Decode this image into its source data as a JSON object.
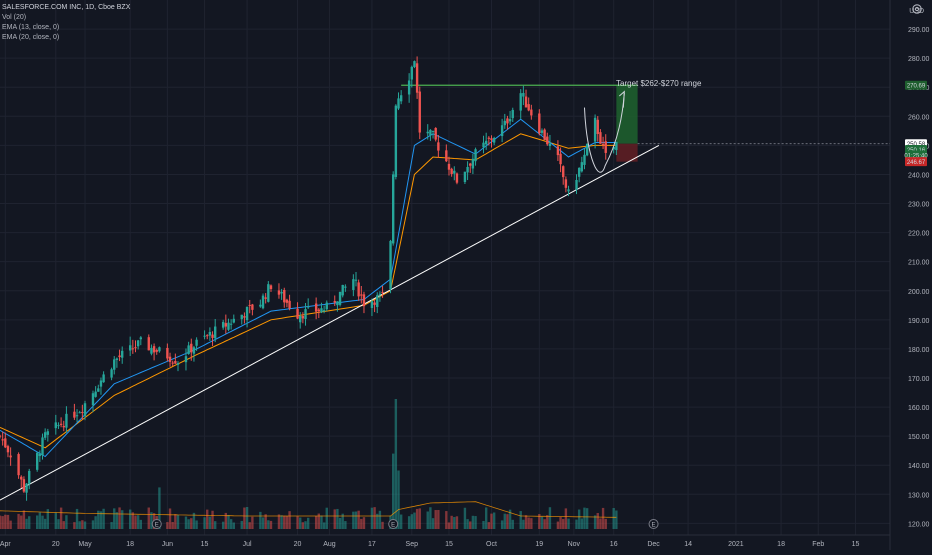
{
  "header": {
    "symbol_line": "SALESFORCE.COM INC, 1D, Cboe BZX",
    "indicators": [
      "Vol (20)",
      "EMA (13, close, 0)",
      "EMA (20, close, 0)"
    ]
  },
  "currency_label": "USD",
  "annotation_text": "Target $262-$270 range",
  "price_tags": [
    {
      "label": "270.69",
      "value": 270.69,
      "bg": "#1e5e2e",
      "fg": "#d1d4dc"
    },
    {
      "label": "250.58",
      "value": 250.58,
      "bg": "#ffffff",
      "fg": "#131722"
    },
    {
      "label": "250.16",
      "value": 248.6,
      "bg": "#1e6e3a",
      "fg": "#d1d4dc"
    },
    {
      "label": "01:25:40",
      "value": 246.7,
      "bg": "#1e6e3a",
      "fg": "#d1d4dc"
    },
    {
      "label": "246.67",
      "value": 244.4,
      "bg": "#c62828",
      "fg": "#d1d4dc"
    }
  ],
  "colors": {
    "background": "#131722",
    "grid": "#1f2330",
    "up": "#26a69a",
    "down": "#ef5350",
    "ema13": "#2196f3",
    "ema20": "#ff9800",
    "trendline": "#ffffff",
    "resistance": "#4caf50",
    "target_zone": "#1e5e2e",
    "stop_zone": "#5e1e24"
  },
  "chart_data": {
    "type": "candlestick",
    "title": "SALESFORCE.COM INC, 1D, Cboe BZX",
    "y_axis": {
      "ticks": [
        120,
        130,
        140,
        150,
        160,
        170,
        180,
        190,
        200,
        210,
        220,
        230,
        240,
        250,
        260,
        270,
        280,
        290
      ],
      "ylim": [
        116,
        300
      ],
      "scale": "linear",
      "position": "right",
      "unit": "USD"
    },
    "x_axis": {
      "ticks": [
        {
          "label": "Apr",
          "date": "2020-04-01"
        },
        {
          "label": "20",
          "date": "2020-04-20"
        },
        {
          "label": "May",
          "date": "2020-05-01"
        },
        {
          "label": "18",
          "date": "2020-05-18"
        },
        {
          "label": "Jun",
          "date": "2020-06-01"
        },
        {
          "label": "15",
          "date": "2020-06-15"
        },
        {
          "label": "Jul",
          "date": "2020-07-01"
        },
        {
          "label": "20",
          "date": "2020-07-20"
        },
        {
          "label": "Aug",
          "date": "2020-08-01"
        },
        {
          "label": "17",
          "date": "2020-08-17"
        },
        {
          "label": "Sep",
          "date": "2020-09-01"
        },
        {
          "label": "15",
          "date": "2020-09-15"
        },
        {
          "label": "Oct",
          "date": "2020-10-01"
        },
        {
          "label": "19",
          "date": "2020-10-19"
        },
        {
          "label": "Nov",
          "date": "2020-11-01"
        },
        {
          "label": "16",
          "date": "2020-11-16"
        },
        {
          "label": "Dec",
          "date": "2020-12-01"
        },
        {
          "label": "14",
          "date": "2020-12-14"
        },
        {
          "label": "2021",
          "date": "2021-01-01"
        },
        {
          "label": "18",
          "date": "2021-01-18"
        },
        {
          "label": "Feb",
          "date": "2021-02-01"
        },
        {
          "label": "15",
          "date": "2021-02-15"
        }
      ],
      "xlim": [
        "2020-03-30",
        "2021-02-28"
      ]
    },
    "grid": true,
    "legend": "top-left",
    "price_keyframes": [
      {
        "date": "2020-03-30",
        "close": 150
      },
      {
        "date": "2020-04-03",
        "close": 144
      },
      {
        "date": "2020-04-08",
        "close": 132
      },
      {
        "date": "2020-04-16",
        "close": 150
      },
      {
        "date": "2020-04-30",
        "close": 160
      },
      {
        "date": "2020-05-12",
        "close": 176
      },
      {
        "date": "2020-05-22",
        "close": 182
      },
      {
        "date": "2020-06-05",
        "close": 176
      },
      {
        "date": "2020-06-12",
        "close": 182
      },
      {
        "date": "2020-06-26",
        "close": 190
      },
      {
        "date": "2020-07-06",
        "close": 196
      },
      {
        "date": "2020-07-10",
        "close": 202
      },
      {
        "date": "2020-07-20",
        "close": 192
      },
      {
        "date": "2020-07-31",
        "close": 194
      },
      {
        "date": "2020-08-10",
        "close": 204
      },
      {
        "date": "2020-08-14",
        "close": 196
      },
      {
        "date": "2020-08-21",
        "close": 198
      },
      {
        "date": "2020-08-24",
        "close": 216
      },
      {
        "date": "2020-08-26",
        "close": 265
      },
      {
        "date": "2020-08-31",
        "close": 274
      },
      {
        "date": "2020-09-02",
        "close": 280
      },
      {
        "date": "2020-09-04",
        "close": 255
      },
      {
        "date": "2020-09-09",
        "close": 253
      },
      {
        "date": "2020-09-18",
        "close": 238
      },
      {
        "date": "2020-09-25",
        "close": 247
      },
      {
        "date": "2020-10-06",
        "close": 257
      },
      {
        "date": "2020-10-12",
        "close": 268
      },
      {
        "date": "2020-10-19",
        "close": 256
      },
      {
        "date": "2020-10-26",
        "close": 245
      },
      {
        "date": "2020-10-30",
        "close": 233
      },
      {
        "date": "2020-11-05",
        "close": 246
      },
      {
        "date": "2020-11-09",
        "close": 258
      },
      {
        "date": "2020-11-13",
        "close": 246
      },
      {
        "date": "2020-11-17",
        "close": 250.58
      }
    ],
    "ema13_keyframes": [
      {
        "date": "2020-03-30",
        "value": 152
      },
      {
        "date": "2020-04-16",
        "value": 143
      },
      {
        "date": "2020-05-12",
        "value": 168
      },
      {
        "date": "2020-06-12",
        "value": 180
      },
      {
        "date": "2020-07-10",
        "value": 193
      },
      {
        "date": "2020-08-14",
        "value": 197
      },
      {
        "date": "2020-08-24",
        "value": 204
      },
      {
        "date": "2020-09-02",
        "value": 250
      },
      {
        "date": "2020-09-09",
        "value": 254
      },
      {
        "date": "2020-09-25",
        "value": 247
      },
      {
        "date": "2020-10-12",
        "value": 259
      },
      {
        "date": "2020-10-30",
        "value": 246
      },
      {
        "date": "2020-11-09",
        "value": 251
      },
      {
        "date": "2020-11-17",
        "value": 251
      }
    ],
    "ema20_keyframes": [
      {
        "date": "2020-03-30",
        "value": 153
      },
      {
        "date": "2020-04-16",
        "value": 146
      },
      {
        "date": "2020-05-12",
        "value": 164
      },
      {
        "date": "2020-06-12",
        "value": 178
      },
      {
        "date": "2020-07-10",
        "value": 190
      },
      {
        "date": "2020-08-14",
        "value": 195
      },
      {
        "date": "2020-08-24",
        "value": 200
      },
      {
        "date": "2020-09-02",
        "value": 240
      },
      {
        "date": "2020-09-09",
        "value": 246
      },
      {
        "date": "2020-09-25",
        "value": 245
      },
      {
        "date": "2020-10-12",
        "value": 254
      },
      {
        "date": "2020-10-30",
        "value": 249
      },
      {
        "date": "2020-11-09",
        "value": 250
      },
      {
        "date": "2020-11-17",
        "value": 250
      }
    ],
    "volume_ma_keyframes": [
      {
        "date": "2020-03-30",
        "value": 0.28
      },
      {
        "date": "2020-05-01",
        "value": 0.24
      },
      {
        "date": "2020-07-01",
        "value": 0.2
      },
      {
        "date": "2020-08-24",
        "value": 0.2
      },
      {
        "date": "2020-08-27",
        "value": 0.3
      },
      {
        "date": "2020-09-08",
        "value": 0.4
      },
      {
        "date": "2020-09-25",
        "value": 0.42
      },
      {
        "date": "2020-10-12",
        "value": 0.2
      },
      {
        "date": "2020-11-17",
        "value": 0.18
      }
    ],
    "volume_spikes": [
      {
        "date": "2020-08-26",
        "rel": 1.0
      },
      {
        "date": "2020-08-25",
        "rel": 0.58
      },
      {
        "date": "2020-08-27",
        "rel": 0.45
      },
      {
        "date": "2020-05-29",
        "rel": 0.32
      }
    ],
    "trendline": [
      {
        "date": "2020-03-30",
        "price": 128
      },
      {
        "date": "2020-12-03",
        "price": 250
      }
    ],
    "resistance_line": {
      "price": 270.69,
      "from": "2020-08-28",
      "to": "2020-11-25"
    },
    "target_zone": {
      "from": "2020-11-17",
      "to": "2020-11-25",
      "low": 250.58,
      "high": 270.69
    },
    "stop_zone": {
      "from": "2020-11-17",
      "to": "2020-11-25",
      "low": 244.4,
      "high": 250.58
    },
    "event_markers": [
      {
        "date": "2020-05-28",
        "label": "E"
      },
      {
        "date": "2020-08-25",
        "label": "E"
      },
      {
        "date": "2020-12-01",
        "label": "E"
      }
    ]
  }
}
